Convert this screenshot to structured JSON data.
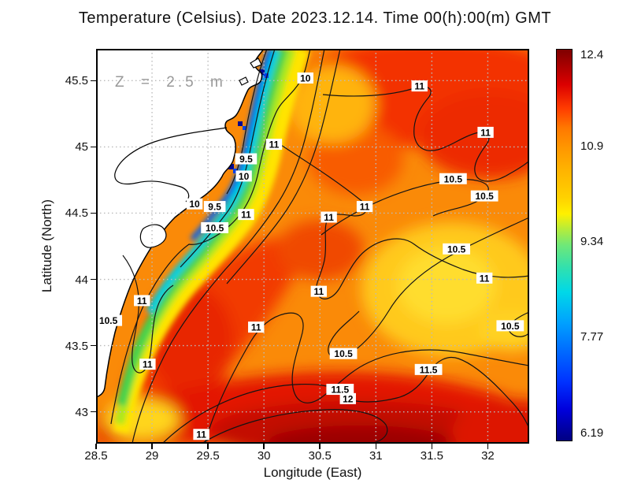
{
  "title": "Temperature (Celsius). Date 2023.12.14. Time 00(h):00(m) GMT",
  "annotation": "Z = 2.5 m",
  "axes": {
    "x_label": "Longitude (East)",
    "y_label": "Latitude (North)",
    "x_ticks": [
      "28.5",
      "29",
      "29.5",
      "30",
      "30.5",
      "31",
      "31.5",
      "32"
    ],
    "y_ticks": [
      "45.5",
      "45",
      "44.5",
      "44",
      "43.5",
      "43"
    ]
  },
  "colorbar": {
    "min": 6.19,
    "max": 12.4,
    "labels": [
      "12.4",
      "10.9",
      "9.34",
      "7.77",
      "6.19"
    ]
  },
  "chart_data": {
    "type": "heatmap",
    "title": "Temperature (Celsius). Date 2023.12.14. Time 00(h):00(m) GMT",
    "variable": "Temperature",
    "units": "Celsius",
    "date": "2023.12.14",
    "time": "00(h):00(m) GMT",
    "depth": "2.5 m",
    "xlabel": "Longitude (East)",
    "ylabel": "Latitude (North)",
    "x_range": [
      28.5,
      32.37
    ],
    "y_range": [
      42.76,
      45.74
    ],
    "grid": true,
    "legend_position": "right-colorbar",
    "colormap": "jet",
    "colorbar_tick_values": [
      12.4,
      10.9,
      9.34,
      7.77,
      6.19
    ],
    "contour_levels": [
      9.5,
      10,
      10.5,
      11,
      11.5,
      12
    ],
    "contour_labels": [
      {
        "v": "10",
        "lon": 30.37,
        "lat": 45.52
      },
      {
        "v": "11",
        "lon": 31.39,
        "lat": 45.46
      },
      {
        "v": "11",
        "lon": 31.98,
        "lat": 45.11
      },
      {
        "v": "11",
        "lon": 30.09,
        "lat": 45.02
      },
      {
        "v": "9.5",
        "lon": 29.84,
        "lat": 44.91
      },
      {
        "v": "10",
        "lon": 29.82,
        "lat": 44.78
      },
      {
        "v": "10.5",
        "lon": 31.69,
        "lat": 44.76
      },
      {
        "v": "10.5",
        "lon": 31.97,
        "lat": 44.63
      },
      {
        "v": "10",
        "lon": 29.38,
        "lat": 44.57
      },
      {
        "v": "9.5",
        "lon": 29.56,
        "lat": 44.55
      },
      {
        "v": "11",
        "lon": 30.9,
        "lat": 44.55
      },
      {
        "v": "11",
        "lon": 30.58,
        "lat": 44.47
      },
      {
        "v": "11",
        "lon": 29.84,
        "lat": 44.49
      },
      {
        "v": "10.5",
        "lon": 29.56,
        "lat": 44.39
      },
      {
        "v": "10.5",
        "lon": 31.72,
        "lat": 44.23
      },
      {
        "v": "11",
        "lon": 31.97,
        "lat": 44.01
      },
      {
        "v": "11",
        "lon": 30.49,
        "lat": 43.91
      },
      {
        "v": "11",
        "lon": 28.91,
        "lat": 43.84
      },
      {
        "v": "10.5",
        "lon": 28.61,
        "lat": 43.69
      },
      {
        "v": "11",
        "lon": 29.93,
        "lat": 43.64
      },
      {
        "v": "10.5",
        "lon": 32.2,
        "lat": 43.65
      },
      {
        "v": "10.5",
        "lon": 30.71,
        "lat": 43.44
      },
      {
        "v": "11",
        "lon": 28.96,
        "lat": 43.36
      },
      {
        "v": "11.5",
        "lon": 31.47,
        "lat": 43.32
      },
      {
        "v": "11.5",
        "lon": 30.68,
        "lat": 43.17
      },
      {
        "v": "12",
        "lon": 30.75,
        "lat": 43.1
      },
      {
        "v": "11",
        "lon": 29.44,
        "lat": 42.83
      }
    ]
  }
}
